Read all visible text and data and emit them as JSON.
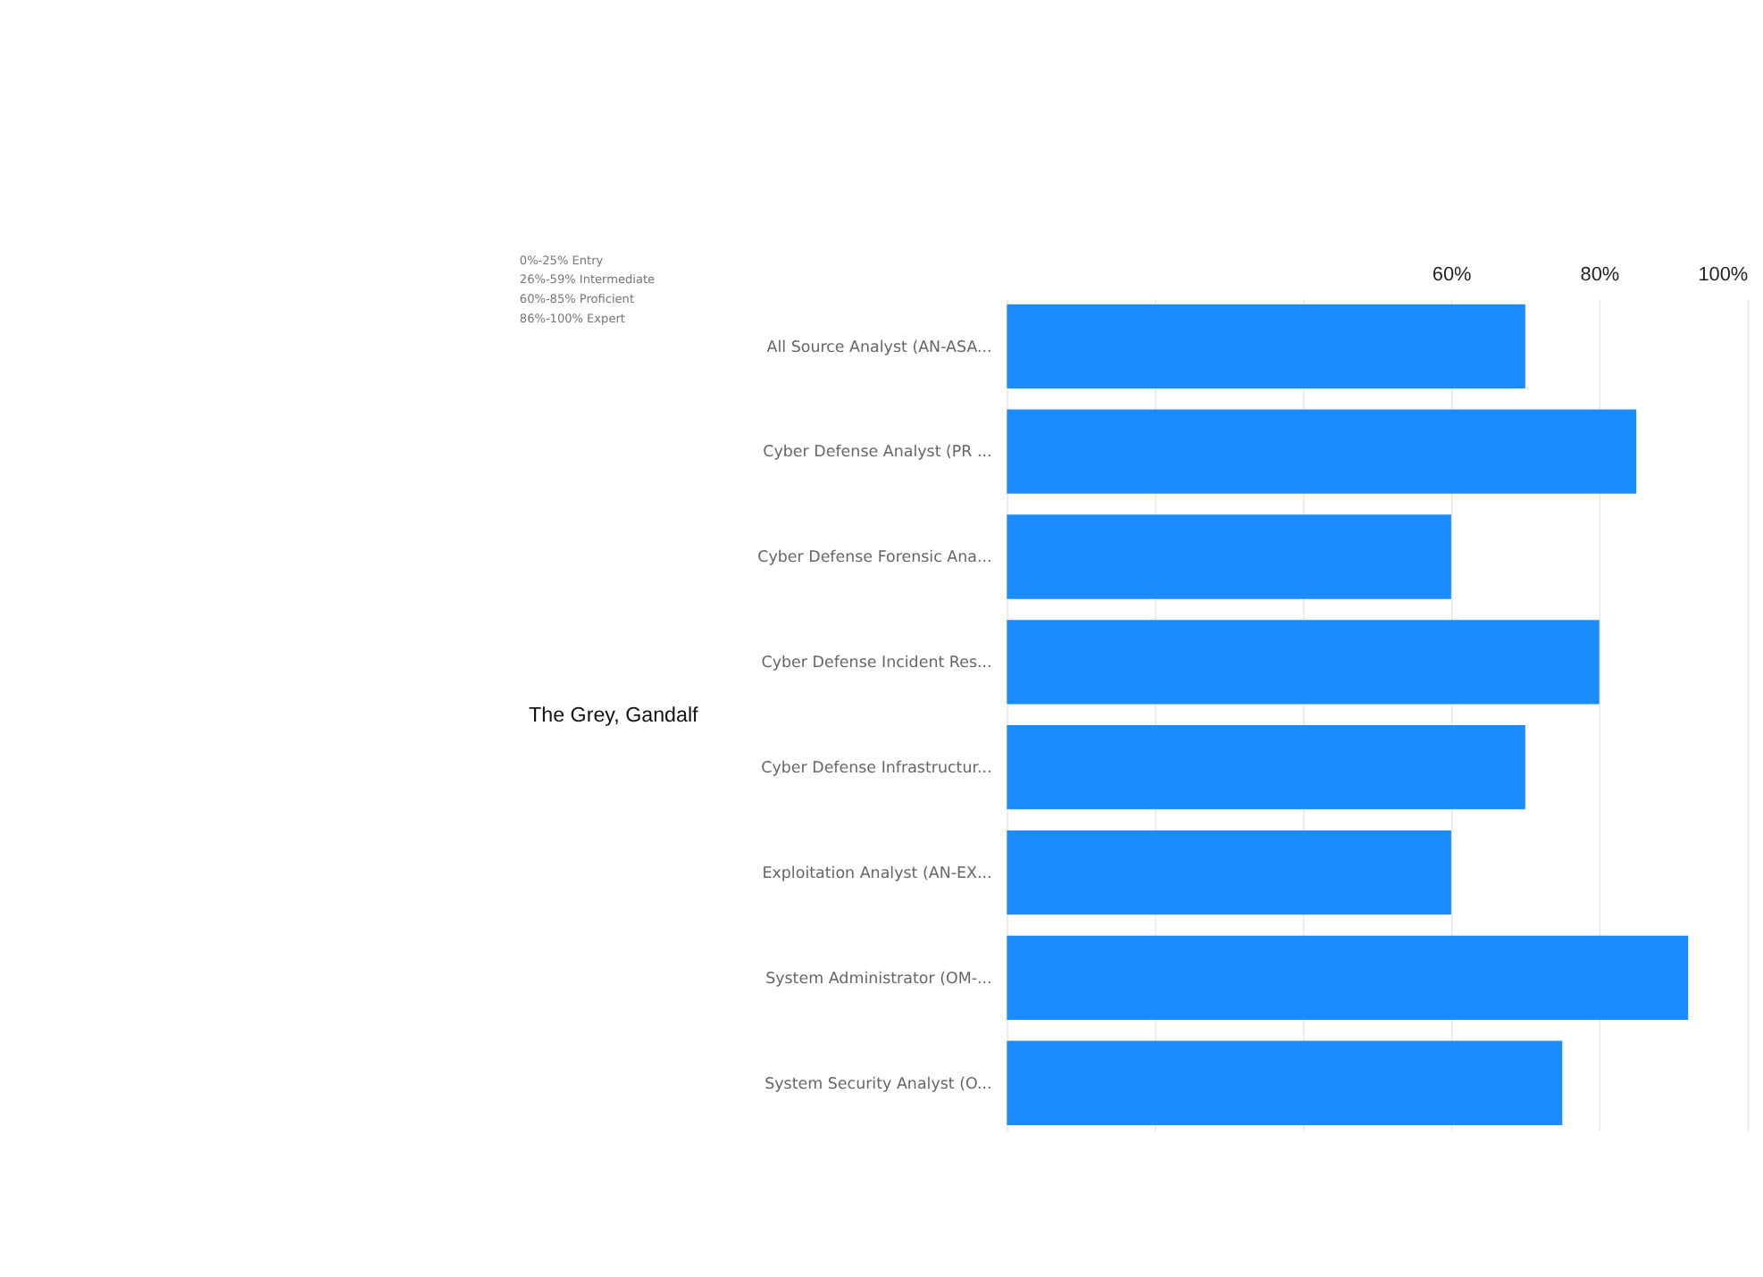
{
  "chart_data": {
    "type": "bar",
    "orientation": "horizontal",
    "categories": [
      "All Source Analyst (AN-ASA...",
      "Cyber Defense Analyst (PR ...",
      "Cyber Defense Forensic Ana...",
      "Cyber Defense Incident Res...",
      "Cyber Defense Infrastructur...",
      "Exploitation Analyst (AN-EX...",
      "System Administrator (OM-...",
      "System Security Analyst (O..."
    ],
    "values": [
      70,
      85,
      60,
      80,
      70,
      60,
      92,
      75
    ],
    "color": "#1a8cff",
    "xlim": [
      0,
      100
    ],
    "xticks": [
      {
        "value": 0,
        "label": null
      },
      {
        "value": 20,
        "label": null
      },
      {
        "value": 40,
        "label": null
      },
      {
        "value": 60,
        "label": "60%"
      },
      {
        "value": 80,
        "label": "80%"
      },
      {
        "value": 100,
        "label": "100%"
      }
    ],
    "grid": "x",
    "annotations": [
      "0%-25%   Entry",
      "26%-59%   Intermediate",
      "60%-85%   Proficient",
      "86%-100%   Expert",
      "The Grey, Gandalf"
    ]
  }
}
